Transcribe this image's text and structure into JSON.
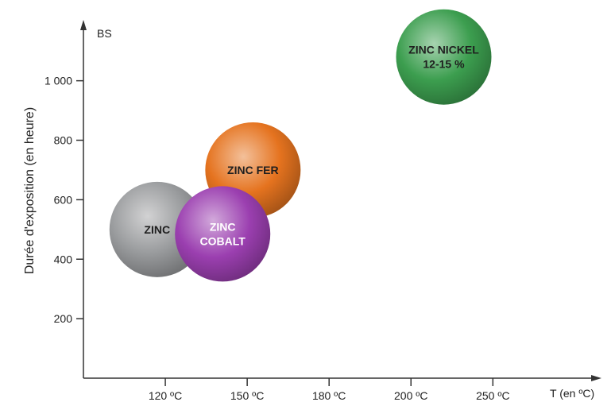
{
  "chart_data": {
    "type": "scatter",
    "ylabel": "Durée d'exposition (en heure)",
    "y_unit_label": "BS",
    "xlabel": "T (en ºC)",
    "yticks": [
      {
        "value": 200,
        "label": "200"
      },
      {
        "value": 400,
        "label": "400"
      },
      {
        "value": 600,
        "label": "600"
      },
      {
        "value": 800,
        "label": "800"
      },
      {
        "value": 1000,
        "label": "1 000"
      }
    ],
    "xticks": [
      {
        "value": 1,
        "label": "120 ºC"
      },
      {
        "value": 2,
        "label": "150 ºC"
      },
      {
        "value": 3,
        "label": "180 ºC"
      },
      {
        "value": 4,
        "label": "200 ºC"
      },
      {
        "value": 5,
        "label": "250 ºC"
      }
    ],
    "ylim": [
      0,
      1170
    ],
    "xlim": [
      0,
      6.2
    ],
    "grid": false,
    "series": [
      {
        "label_lines": [
          "ZINC"
        ],
        "x": 0.9,
        "y": 500,
        "color": "#9a9c9e",
        "text_color": "#1f1f1f"
      },
      {
        "label_lines": [
          "ZINC FER"
        ],
        "x": 2.07,
        "y": 700,
        "color": "#e5731f",
        "text_color": "#1f1f1f"
      },
      {
        "label_lines": [
          "ZINC",
          "COBALT"
        ],
        "x": 1.7,
        "y": 485,
        "color": "#9b3fb0",
        "text_color": "#ffffff"
      },
      {
        "label_lines": [
          "ZINC NICKEL",
          "12-15 %"
        ],
        "x": 4.4,
        "y": 1080,
        "color": "#3c9e4f",
        "text_color": "#1f1f1f"
      }
    ]
  }
}
